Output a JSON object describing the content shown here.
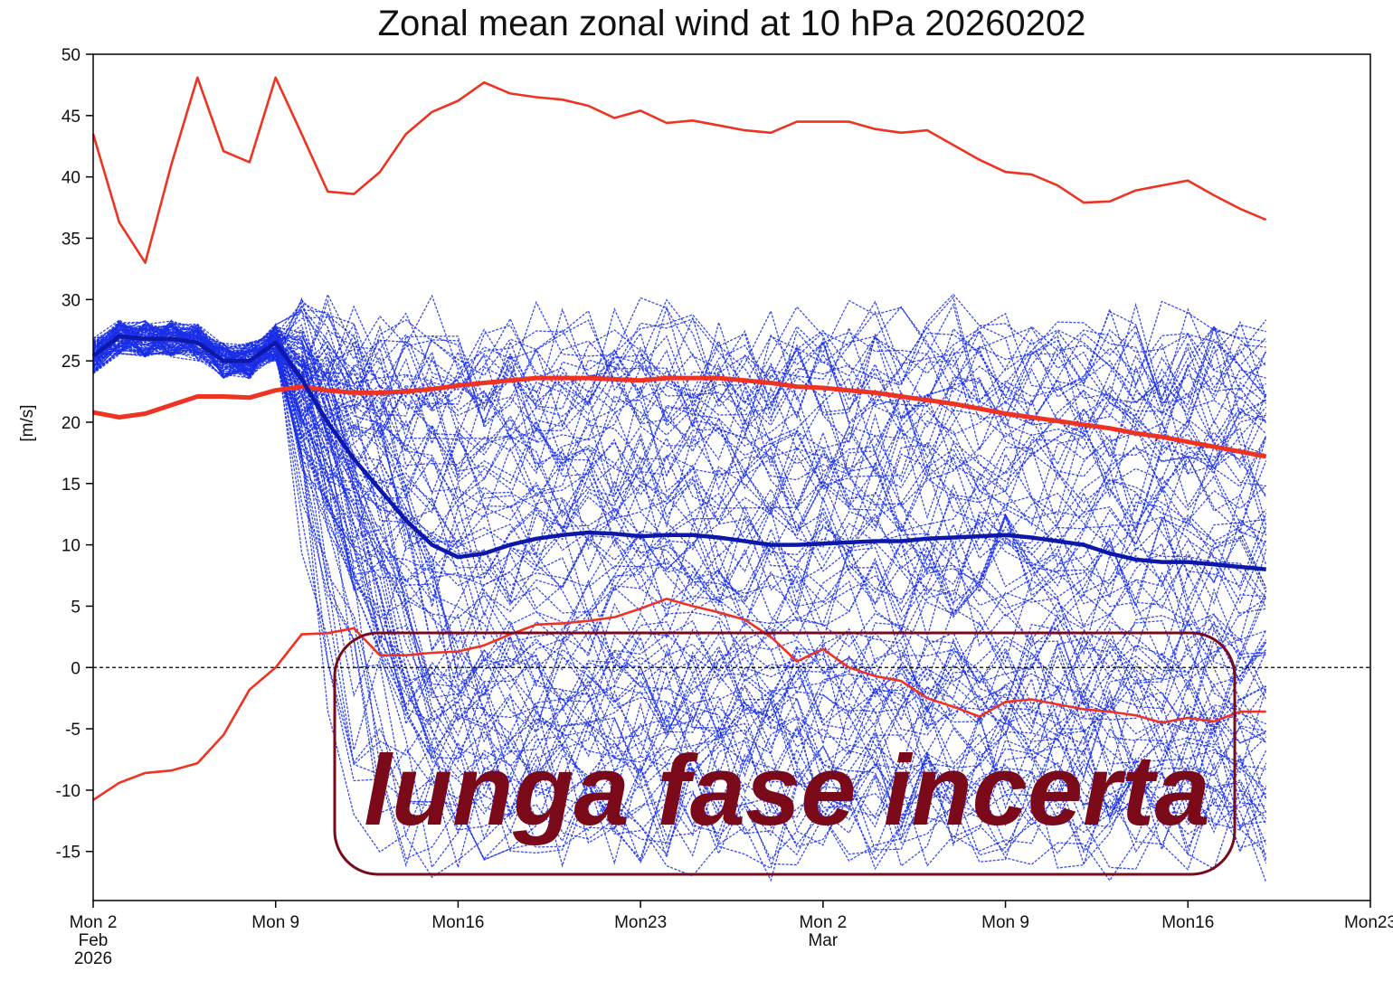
{
  "chart_data": {
    "type": "line",
    "title": "Zonal mean zonal wind at 10 hPa 20260202",
    "ylabel": "[m/s]",
    "xlabel": "",
    "ylim": [
      -19,
      50
    ],
    "xlim": [
      "2026-02-02",
      "2026-03-23"
    ],
    "y_ticks": [
      50,
      45,
      40,
      35,
      30,
      25,
      20,
      15,
      10,
      5,
      0,
      -5,
      -10,
      -15
    ],
    "x_ticks": [
      {
        "date": "2026-02-02",
        "lines": [
          "Mon 2",
          "Feb",
          "2026"
        ]
      },
      {
        "date": "2026-02-09",
        "lines": [
          "Mon 9"
        ]
      },
      {
        "date": "2026-02-16",
        "lines": [
          "Mon16"
        ]
      },
      {
        "date": "2026-02-23",
        "lines": [
          "Mon23"
        ]
      },
      {
        "date": "2026-03-02",
        "lines": [
          "Mon 2",
          "Mar"
        ]
      },
      {
        "date": "2026-03-09",
        "lines": [
          "Mon 9"
        ]
      },
      {
        "date": "2026-03-16",
        "lines": [
          "Mon16"
        ]
      },
      {
        "date": "2026-03-23",
        "lines": [
          "Mon23"
        ]
      }
    ],
    "grid": false,
    "zero_line": {
      "y": 0,
      "style": "dashed"
    },
    "colors": {
      "climatology": "#ee3322",
      "ensemble": "#1a2ee6",
      "ens_mean": "#0d18a8",
      "annotation": "#7a0a1a"
    },
    "x_dates": [
      "2026-02-02",
      "2026-02-03",
      "2026-02-04",
      "2026-02-05",
      "2026-02-06",
      "2026-02-07",
      "2026-02-08",
      "2026-02-09",
      "2026-02-10",
      "2026-02-11",
      "2026-02-12",
      "2026-02-13",
      "2026-02-14",
      "2026-02-15",
      "2026-02-16",
      "2026-02-17",
      "2026-02-18",
      "2026-02-19",
      "2026-02-20",
      "2026-02-21",
      "2026-02-22",
      "2026-02-23",
      "2026-02-24",
      "2026-02-25",
      "2026-02-26",
      "2026-02-27",
      "2026-02-28",
      "2026-03-01",
      "2026-03-02",
      "2026-03-03",
      "2026-03-04",
      "2026-03-05",
      "2026-03-06",
      "2026-03-07",
      "2026-03-08",
      "2026-03-09",
      "2026-03-10",
      "2026-03-11",
      "2026-03-12",
      "2026-03-13",
      "2026-03-14",
      "2026-03-15",
      "2026-03-16",
      "2026-03-17",
      "2026-03-18",
      "2026-03-19"
    ],
    "series": [
      {
        "role": "clim-max",
        "values": [
          43.5,
          36.3,
          33.0,
          41.0,
          48.1,
          42.1,
          41.2,
          48.1,
          43.5,
          38.8,
          38.6,
          40.4,
          43.5,
          45.3,
          46.2,
          47.7,
          46.8,
          46.5,
          46.3,
          45.8,
          44.8,
          45.4,
          44.4,
          44.6,
          44.2,
          43.8,
          43.6,
          44.5,
          44.5,
          44.5,
          43.9,
          43.6,
          43.8,
          42.6,
          41.4,
          40.4,
          40.2,
          39.3,
          37.9,
          38.0,
          38.9,
          39.3,
          39.7,
          38.5,
          37.4,
          36.5
        ]
      },
      {
        "role": "clim-mean",
        "values": [
          20.8,
          20.4,
          20.7,
          21.4,
          22.1,
          22.1,
          22.0,
          22.6,
          22.9,
          22.6,
          22.4,
          22.4,
          22.5,
          22.7,
          23.0,
          23.2,
          23.4,
          23.6,
          23.6,
          23.6,
          23.5,
          23.4,
          23.6,
          23.6,
          23.6,
          23.4,
          23.2,
          22.9,
          22.8,
          22.6,
          22.4,
          22.1,
          21.8,
          21.5,
          21.1,
          20.7,
          20.4,
          20.1,
          19.8,
          19.5,
          19.1,
          18.8,
          18.4,
          18.0,
          17.6,
          17.2
        ]
      },
      {
        "role": "clim-min",
        "values": [
          -10.8,
          -9.4,
          -8.6,
          -8.4,
          -7.8,
          -5.5,
          -1.8,
          0.0,
          2.7,
          2.8,
          3.2,
          1.0,
          1.0,
          1.2,
          1.3,
          1.8,
          2.7,
          3.5,
          3.6,
          3.8,
          4.1,
          4.8,
          5.6,
          5.0,
          4.5,
          3.9,
          2.5,
          0.5,
          1.5,
          0.0,
          -0.7,
          -1.1,
          -2.5,
          -3.2,
          -4.0,
          -2.8,
          -2.6,
          -3.0,
          -3.4,
          -3.6,
          -3.9,
          -4.5,
          -4.1,
          -4.4,
          -3.6,
          -3.6
        ]
      },
      {
        "role": "ens-mean",
        "values": [
          25.4,
          27.0,
          26.8,
          26.8,
          26.5,
          25.0,
          25.0,
          26.5,
          23.5,
          20.0,
          17.0,
          14.5,
          12.0,
          10.0,
          9.0,
          9.3,
          10.0,
          10.5,
          10.8,
          11.0,
          10.9,
          10.7,
          10.8,
          10.8,
          10.6,
          10.3,
          10.0,
          10.0,
          10.1,
          10.2,
          10.3,
          10.3,
          10.5,
          10.6,
          10.7,
          10.8,
          10.6,
          10.3,
          10.0,
          9.3,
          8.8,
          8.6,
          8.6,
          8.4,
          8.2,
          8.0
        ]
      }
    ],
    "ensemble": {
      "members": 100,
      "start_value": 25.4,
      "transition_date": "2026-02-09",
      "spread_range": [
        -17.5,
        32.5
      ]
    },
    "annotation": "lunga fase incerta"
  }
}
